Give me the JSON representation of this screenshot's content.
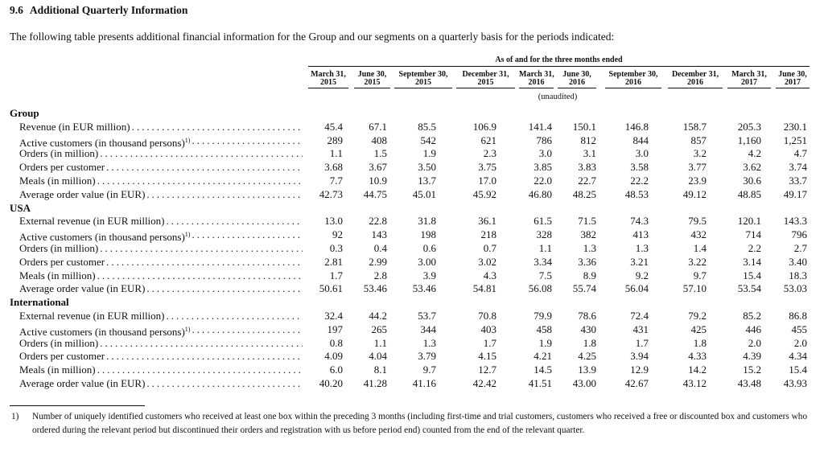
{
  "section": {
    "number": "9.6",
    "title": "Additional Quarterly Information"
  },
  "intro": "The following table presents additional financial information for the Group and our segments on a quarterly basis for the periods indicated:",
  "table": {
    "span_header": "As of and for the three months ended",
    "columns": [
      {
        "date": "March 31,",
        "year": "2015"
      },
      {
        "date": "June 30,",
        "year": "2015"
      },
      {
        "date": "September 30,",
        "year": "2015"
      },
      {
        "date": "December 31,",
        "year": "2015"
      },
      {
        "date": "March 31,",
        "year": "2016"
      },
      {
        "date": "June 30,",
        "year": "2016"
      },
      {
        "date": "September 30,",
        "year": "2016"
      },
      {
        "date": "December 31,",
        "year": "2016"
      },
      {
        "date": "March 31,",
        "year": "2017"
      },
      {
        "date": "June 30,",
        "year": "2017"
      }
    ],
    "unaudited": "(unaudited)",
    "groups": [
      {
        "name": "Group",
        "rows": [
          {
            "label": "Revenue (in EUR million)",
            "values": [
              "45.4",
              "67.1",
              "85.5",
              "106.9",
              "141.4",
              "150.1",
              "146.8",
              "158.7",
              "205.3",
              "230.1"
            ]
          },
          {
            "label": "Active customers (in thousand persons)",
            "note": "1)",
            "values": [
              "289",
              "408",
              "542",
              "621",
              "786",
              "812",
              "844",
              "857",
              "1,160",
              "1,251"
            ]
          },
          {
            "label": "Orders (in million)",
            "values": [
              "1.1",
              "1.5",
              "1.9",
              "2.3",
              "3.0",
              "3.1",
              "3.0",
              "3.2",
              "4.2",
              "4.7"
            ]
          },
          {
            "label": "Orders per customer",
            "values": [
              "3.68",
              "3.67",
              "3.50",
              "3.75",
              "3.85",
              "3.83",
              "3.58",
              "3.77",
              "3.62",
              "3.74"
            ]
          },
          {
            "label": "Meals (in million)",
            "values": [
              "7.7",
              "10.9",
              "13.7",
              "17.0",
              "22.0",
              "22.7",
              "22.2",
              "23.9",
              "30.6",
              "33.7"
            ]
          },
          {
            "label": "Average order value (in EUR)",
            "values": [
              "42.73",
              "44.75",
              "45.01",
              "45.92",
              "46.80",
              "48.25",
              "48.53",
              "49.12",
              "48.85",
              "49.17"
            ]
          }
        ]
      },
      {
        "name": "USA",
        "rows": [
          {
            "label": "External revenue (in EUR million)",
            "values": [
              "13.0",
              "22.8",
              "31.8",
              "36.1",
              "61.5",
              "71.5",
              "74.3",
              "79.5",
              "120.1",
              "143.3"
            ]
          },
          {
            "label": "Active customers (in thousand persons)",
            "note": "1)",
            "values": [
              "92",
              "143",
              "198",
              "218",
              "328",
              "382",
              "413",
              "432",
              "714",
              "796"
            ]
          },
          {
            "label": "Orders (in million)",
            "values": [
              "0.3",
              "0.4",
              "0.6",
              "0.7",
              "1.1",
              "1.3",
              "1.3",
              "1.4",
              "2.2",
              "2.7"
            ]
          },
          {
            "label": "Orders per customer",
            "values": [
              "2.81",
              "2.99",
              "3.00",
              "3.02",
              "3.34",
              "3.36",
              "3.21",
              "3.22",
              "3.14",
              "3.40"
            ]
          },
          {
            "label": "Meals (in million)",
            "values": [
              "1.7",
              "2.8",
              "3.9",
              "4.3",
              "7.5",
              "8.9",
              "9.2",
              "9.7",
              "15.4",
              "18.3"
            ]
          },
          {
            "label": "Average order value (in EUR)",
            "values": [
              "50.61",
              "53.46",
              "53.46",
              "54.81",
              "56.08",
              "55.74",
              "56.04",
              "57.10",
              "53.54",
              "53.03"
            ]
          }
        ]
      },
      {
        "name": "International",
        "rows": [
          {
            "label": "External revenue (in EUR million)",
            "values": [
              "32.4",
              "44.2",
              "53.7",
              "70.8",
              "79.9",
              "78.6",
              "72.4",
              "79.2",
              "85.2",
              "86.8"
            ]
          },
          {
            "label": "Active customers (in thousand persons)",
            "note": "1)",
            "values": [
              "197",
              "265",
              "344",
              "403",
              "458",
              "430",
              "431",
              "425",
              "446",
              "455"
            ]
          },
          {
            "label": "Orders (in million)",
            "values": [
              "0.8",
              "1.1",
              "1.3",
              "1.7",
              "1.9",
              "1.8",
              "1.7",
              "1.8",
              "2.0",
              "2.0"
            ]
          },
          {
            "label": "Orders per customer",
            "values": [
              "4.09",
              "4.04",
              "3.79",
              "4.15",
              "4.21",
              "4.25",
              "3.94",
              "4.33",
              "4.39",
              "4.34"
            ]
          },
          {
            "label": "Meals (in million)",
            "values": [
              "6.0",
              "8.1",
              "9.7",
              "12.7",
              "14.5",
              "13.9",
              "12.9",
              "14.2",
              "15.2",
              "15.4"
            ]
          },
          {
            "label": "Average order value (in EUR)",
            "values": [
              "40.20",
              "41.28",
              "41.16",
              "42.42",
              "41.51",
              "43.00",
              "42.67",
              "43.12",
              "43.48",
              "43.93"
            ]
          }
        ]
      }
    ]
  },
  "footnote": {
    "marker": "1)",
    "text": "Number of uniquely identified customers who received at least one box within the preceding 3 months (including first-time and trial customers, customers who received a free or discounted box and customers who ordered during the relevant period but discontinued their orders and registration with us before period end) counted from the end of the relevant quarter."
  }
}
